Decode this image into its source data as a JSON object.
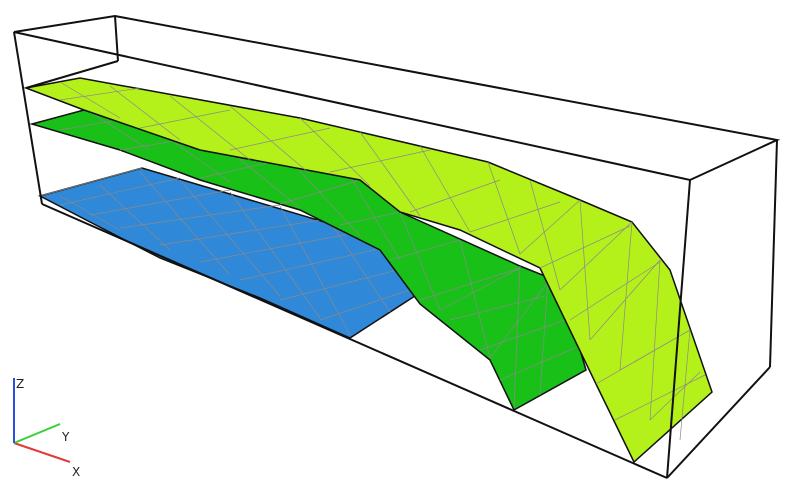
{
  "viewer": {
    "axes": [
      {
        "label": "X",
        "color": "#e23b3b"
      },
      {
        "label": "Y",
        "color": "#35d035"
      },
      {
        "label": "Z",
        "color": "#2a4fe0"
      }
    ]
  },
  "colors": {
    "background": "#ffffff",
    "box_edges": "#111111",
    "mesh_lines": "#8a8a8a",
    "surface_bottom": "#2f88d8",
    "surface_middle": "#18c018",
    "surface_top": "#b4f01a"
  }
}
